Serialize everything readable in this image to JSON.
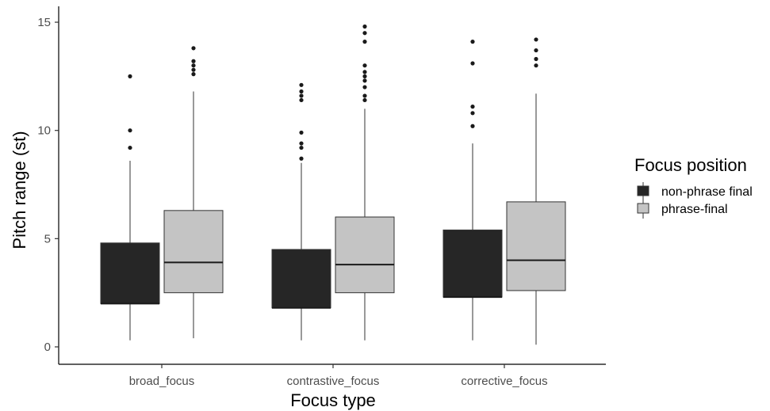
{
  "chart_data": {
    "type": "boxplot",
    "xlabel": "Focus type",
    "ylabel": "Pitch range (st)",
    "ylim": [
      -0.7,
      15.7
    ],
    "yticks": [
      0,
      5,
      10,
      15
    ],
    "categories": [
      "broad_focus",
      "contrastive_focus",
      "corrective_focus"
    ],
    "legend": {
      "title": "Focus position",
      "placement": "right",
      "entries": [
        "non-phrase final",
        "phrase-final"
      ]
    },
    "grid": false,
    "series": [
      {
        "name": "non-phrase final",
        "color": "#262626",
        "boxes": [
          {
            "min": 0.3,
            "q1": 2.0,
            "median": 2.0,
            "q3": 4.8,
            "max": 8.6,
            "outliers": [
              9.2,
              10.0,
              12.5
            ]
          },
          {
            "min": 0.3,
            "q1": 1.8,
            "median": 1.8,
            "q3": 4.5,
            "max": 8.5,
            "outliers": [
              8.7,
              9.2,
              9.4,
              9.9,
              11.4,
              11.6,
              11.8,
              12.1
            ]
          },
          {
            "min": 0.3,
            "q1": 2.3,
            "median": 2.3,
            "q3": 5.4,
            "max": 9.4,
            "outliers": [
              10.2,
              10.8,
              11.1,
              13.1,
              14.1
            ]
          }
        ]
      },
      {
        "name": "phrase-final",
        "color": "#c4c4c4",
        "boxes": [
          {
            "min": 0.4,
            "q1": 2.5,
            "median": 3.9,
            "q3": 6.3,
            "max": 11.8,
            "outliers": [
              12.6,
              12.8,
              13.0,
              13.2,
              13.8
            ]
          },
          {
            "min": 0.3,
            "q1": 2.5,
            "median": 3.8,
            "q3": 6.0,
            "max": 11.0,
            "outliers": [
              11.4,
              11.6,
              12.0,
              12.3,
              12.5,
              12.7,
              13.0,
              14.1,
              14.5,
              14.8
            ]
          },
          {
            "min": 0.1,
            "q1": 2.6,
            "median": 4.0,
            "q3": 6.7,
            "max": 11.7,
            "outliers": [
              13.0,
              13.3,
              13.7,
              14.2
            ]
          }
        ]
      }
    ]
  }
}
